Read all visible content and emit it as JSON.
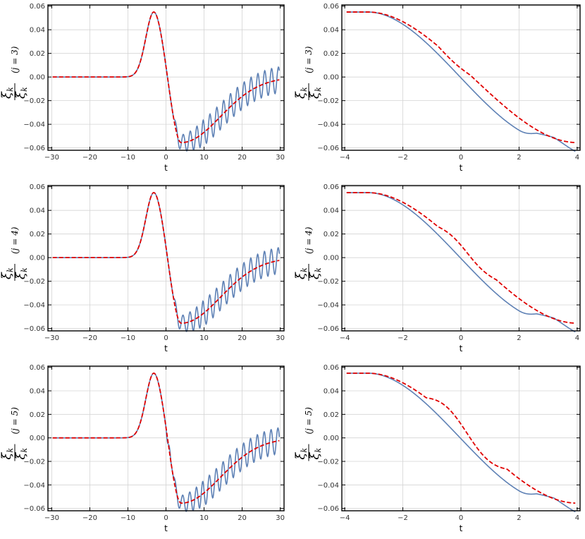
{
  "figure": {
    "colors": {
      "numeric": "#5e81b5",
      "approx": "#e00000",
      "grid": "#d4d4d4",
      "frame": "#000000"
    },
    "ylabel": {
      "numerator": "ξ̇",
      "denominator": "ξ",
      "subscript": "k"
    }
  },
  "chart_data": [
    {
      "type": "line",
      "row": 0,
      "col": 0,
      "xlabel": "t",
      "j_label": "(j = 3)",
      "xlim": [
        -31,
        31
      ],
      "ylim": [
        -0.062,
        0.061
      ],
      "xticks": [
        -30,
        -20,
        -10,
        0,
        10,
        20,
        30
      ],
      "yticks": [
        -0.06,
        -0.04,
        -0.02,
        0.0,
        0.02,
        0.04,
        0.06
      ],
      "xtick_labels": [
        "−30",
        "−20",
        "−10",
        "0",
        "10",
        "20",
        "30"
      ],
      "ytick_labels": [
        "−0.06",
        "−0.04",
        "−0.02",
        "0.00",
        "0.02",
        "0.04",
        "0.06"
      ],
      "grid": true,
      "legend": "none",
      "series": [
        {
          "style": "solid",
          "shape": "numeric-j3"
        },
        {
          "style": "dashed",
          "shape": "approx-wide"
        }
      ]
    },
    {
      "type": "line",
      "row": 0,
      "col": 1,
      "xlabel": "t",
      "j_label": "(j = 3)",
      "xlim": [
        -4.1,
        4.1
      ],
      "ylim": [
        -0.062,
        0.061
      ],
      "xticks": [
        -4,
        -2,
        0,
        2,
        4
      ],
      "yticks": [
        -0.06,
        -0.04,
        -0.02,
        0.0,
        0.02,
        0.04,
        0.06
      ],
      "xtick_labels": [
        "−4",
        "−2",
        "0",
        "2",
        "4"
      ],
      "ytick_labels": [
        "−0.06",
        "−0.04",
        "−0.02",
        "0.00",
        "0.02",
        "0.04",
        "0.06"
      ],
      "grid": true,
      "legend": "none",
      "series": [
        {
          "style": "solid",
          "shape": "numeric-zoom"
        },
        {
          "style": "dashed",
          "shape": "approx-zoom-j3"
        }
      ]
    },
    {
      "type": "line",
      "row": 1,
      "col": 0,
      "xlabel": "t",
      "j_label": "(j = 4)",
      "xlim": [
        -31,
        31
      ],
      "ylim": [
        -0.062,
        0.061
      ],
      "xticks": [
        -30,
        -20,
        -10,
        0,
        10,
        20,
        30
      ],
      "yticks": [
        -0.06,
        -0.04,
        -0.02,
        0.0,
        0.02,
        0.04,
        0.06
      ],
      "xtick_labels": [
        "−30",
        "−20",
        "−10",
        "0",
        "10",
        "20",
        "30"
      ],
      "ytick_labels": [
        "−0.06",
        "−0.04",
        "−0.02",
        "0.00",
        "0.02",
        "0.04",
        "0.06"
      ],
      "grid": true,
      "legend": "none",
      "series": [
        {
          "style": "solid",
          "shape": "numeric-j4"
        },
        {
          "style": "dashed",
          "shape": "approx-wide"
        }
      ]
    },
    {
      "type": "line",
      "row": 1,
      "col": 1,
      "xlabel": "t",
      "j_label": "(j = 4)",
      "xlim": [
        -4.1,
        4.1
      ],
      "ylim": [
        -0.062,
        0.061
      ],
      "xticks": [
        -4,
        -2,
        0,
        2,
        4
      ],
      "yticks": [
        -0.06,
        -0.04,
        -0.02,
        0.0,
        0.02,
        0.04,
        0.06
      ],
      "xtick_labels": [
        "−4",
        "−2",
        "0",
        "2",
        "4"
      ],
      "ytick_labels": [
        "−0.06",
        "−0.04",
        "−0.02",
        "0.00",
        "0.02",
        "0.04",
        "0.06"
      ],
      "grid": true,
      "legend": "none",
      "series": [
        {
          "style": "solid",
          "shape": "numeric-zoom"
        },
        {
          "style": "dashed",
          "shape": "approx-zoom-j4"
        }
      ]
    },
    {
      "type": "line",
      "row": 2,
      "col": 0,
      "xlabel": "t",
      "j_label": "(j = 5)",
      "xlim": [
        -31,
        31
      ],
      "ylim": [
        -0.062,
        0.061
      ],
      "xticks": [
        -30,
        -20,
        -10,
        0,
        10,
        20,
        30
      ],
      "yticks": [
        -0.06,
        -0.04,
        -0.02,
        0.0,
        0.02,
        0.04,
        0.06
      ],
      "xtick_labels": [
        "−30",
        "−20",
        "−10",
        "0",
        "10",
        "20",
        "30"
      ],
      "ytick_labels": [
        "−0.06",
        "−0.04",
        "−0.02",
        "0.00",
        "0.02",
        "0.04",
        "0.06"
      ],
      "grid": true,
      "legend": "none",
      "series": [
        {
          "style": "solid",
          "shape": "numeric-j5"
        },
        {
          "style": "dashed",
          "shape": "approx-wide"
        }
      ]
    },
    {
      "type": "line",
      "row": 2,
      "col": 1,
      "xlabel": "t",
      "j_label": "(j = 5)",
      "xlim": [
        -4.1,
        4.1
      ],
      "ylim": [
        -0.062,
        0.061
      ],
      "xticks": [
        -4,
        -2,
        0,
        2,
        4
      ],
      "yticks": [
        -0.06,
        -0.04,
        -0.02,
        0.0,
        0.02,
        0.04,
        0.06
      ],
      "xtick_labels": [
        "−4",
        "−2",
        "0",
        "2",
        "4"
      ],
      "ytick_labels": [
        "−0.06",
        "−0.04",
        "−0.02",
        "0.00",
        "0.02",
        "0.04",
        "0.06"
      ],
      "grid": true,
      "legend": "none",
      "series": [
        {
          "style": "solid",
          "shape": "numeric-zoom"
        },
        {
          "style": "dashed",
          "shape": "approx-zoom-j5"
        }
      ]
    }
  ]
}
